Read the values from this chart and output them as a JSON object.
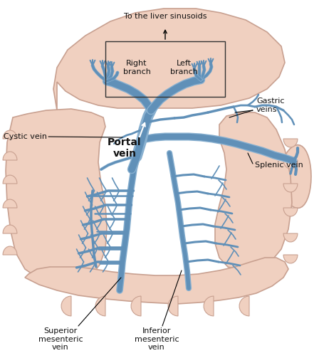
{
  "background_color": "#ffffff",
  "organ_color": "#f0d0c0",
  "organ_edge_color": "#c8a090",
  "vein_color": "#6090b8",
  "vein_light": "#88b0d0",
  "text_color": "#111111",
  "box_color": "#333333",
  "labels": {
    "liver_sinusoids": "To the liver sinusoids",
    "right_branch": "Right\nbranch",
    "left_branch": "Left\nbranch",
    "cystic_vein": "Cystic vein",
    "portal_vein": "Portal\nvein",
    "gastric_veins": "Gastric\nveins",
    "splenic_vein": "Splenic vein",
    "superior_mesenteric": "Superior\nmesenteric\nvein",
    "inferior_mesenteric": "Inferior\nmesenteric\nvein"
  },
  "figsize": [
    4.48,
    5.03
  ],
  "dpi": 100
}
